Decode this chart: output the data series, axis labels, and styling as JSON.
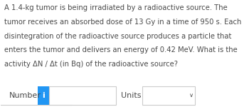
{
  "lines": [
    "A 1.4-kg tumor is being irradiated by a radioactive source. The",
    "tumor receives an absorbed dose of 13 Gy in a time of 950 s. Each",
    "disintegration of the radioactive source produces a particle that",
    "enters the tumor and delivers an energy of 0.42 MeV. What is the",
    "activity ΔN / Δt (in Bq) of the radioactive source?"
  ],
  "label_number": "Number",
  "label_units": "Units",
  "icon_color": "#2196f3",
  "icon_text": "i",
  "bg_color": "#ffffff",
  "text_color": "#4a4a4a",
  "border_color": "#cccccc",
  "font_size_body": 7.2,
  "font_size_label": 8.0,
  "chevron": "∨"
}
